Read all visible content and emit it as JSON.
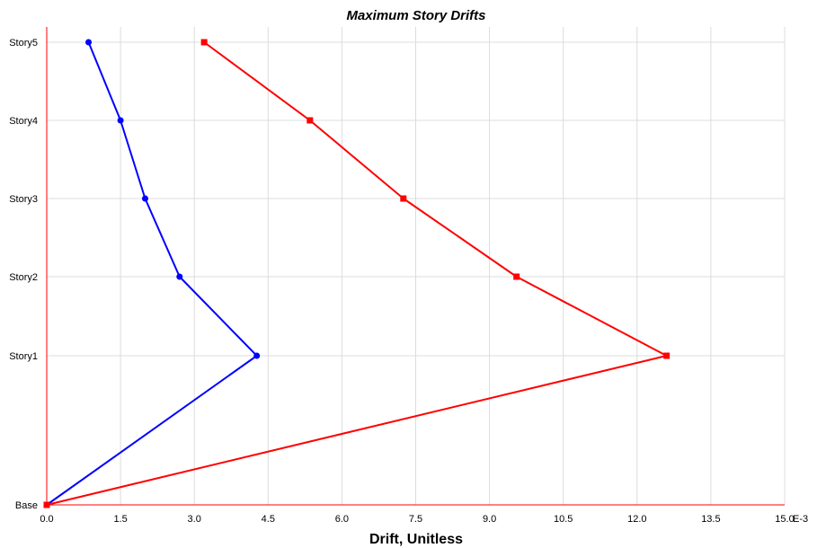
{
  "chart_data": {
    "type": "line",
    "title": "Maximum Story Drifts",
    "xlabel": "Drift, Unitless",
    "ylabel": "",
    "x_unit_suffix": "E-3",
    "xlim": [
      0,
      15
    ],
    "x_ticks": [
      "0.0",
      "1.5",
      "3.0",
      "4.5",
      "6.0",
      "7.5",
      "9.0",
      "10.5",
      "12.0",
      "13.5",
      "15.0"
    ],
    "categories": [
      "Base",
      "Story1",
      "Story2",
      "Story3",
      "Story4",
      "Story5"
    ],
    "grid": true,
    "legend": "none",
    "series": [
      {
        "color": "#0000ff",
        "marker": "circle",
        "values": [
          0.0,
          4.27,
          2.7,
          2.0,
          1.5,
          0.85
        ]
      },
      {
        "color": "#ff0000",
        "marker": "square",
        "values": [
          0.0,
          12.6,
          9.55,
          7.25,
          5.35,
          3.2
        ]
      }
    ],
    "axis_color": "#ff0000"
  }
}
